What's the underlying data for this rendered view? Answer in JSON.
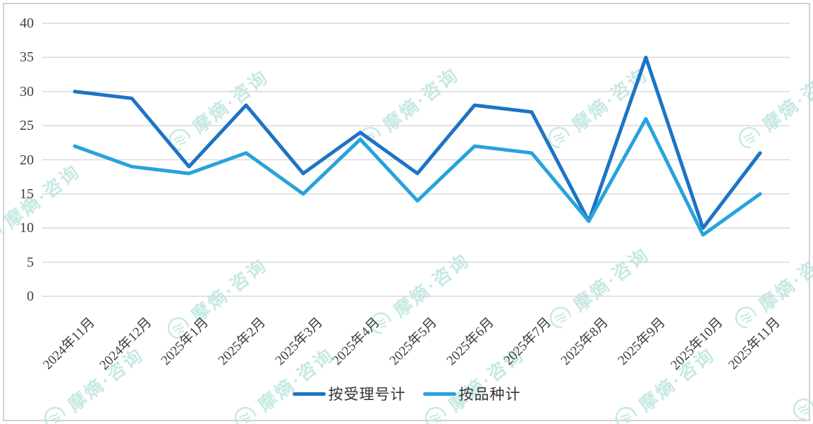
{
  "watermark": {
    "text": "摩熵·咨询",
    "color": "#8ed5c9"
  },
  "chart_data": {
    "type": "line",
    "title": "",
    "xlabel": "",
    "ylabel": "",
    "categories": [
      "2024年11月",
      "2024年12月",
      "2025年1月",
      "2025年2月",
      "2025年3月",
      "2025年4月",
      "2025年5月",
      "2025年6月",
      "2025年7月",
      "2025年8月",
      "2025年9月",
      "2025年10月",
      "2025年11月"
    ],
    "series": [
      {
        "name": "按受理号计",
        "color": "#1e73c4",
        "values": [
          30,
          29,
          19,
          28,
          18,
          24,
          18,
          28,
          27,
          11,
          35,
          10,
          21
        ]
      },
      {
        "name": "按品种计",
        "color": "#27a3db",
        "values": [
          22,
          19,
          18,
          21,
          15,
          23,
          14,
          22,
          21,
          11,
          26,
          9,
          15
        ]
      }
    ],
    "ylim": [
      0,
      40
    ],
    "yticks": [
      0,
      5,
      10,
      15,
      20,
      25,
      30,
      35,
      40
    ],
    "grid": "horizontal",
    "grid_color": "#d9d9d9",
    "tick_label_color": "#404040",
    "legend_position": "bottom"
  }
}
